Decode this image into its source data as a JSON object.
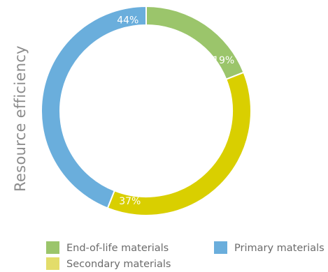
{
  "chart_data": {
    "type": "pie",
    "variant": "donut",
    "ylabel": "Resource efficiency",
    "categories": [
      "End-of-life materials",
      "Secondary materials",
      "Primary materials"
    ],
    "values": [
      19,
      37,
      44
    ],
    "labels": [
      "19%",
      "37%",
      "44%"
    ],
    "colors": [
      "#9bc56b",
      "#d9cf00",
      "#6aaedc"
    ],
    "legend": [
      {
        "label": "End-of-life materials",
        "color": "#9bc56b"
      },
      {
        "label": "Primary materials",
        "color": "#6aaedc"
      },
      {
        "label": "Secondary materials",
        "color": "#e3dd6a"
      }
    ],
    "legend_position": "bottom"
  }
}
